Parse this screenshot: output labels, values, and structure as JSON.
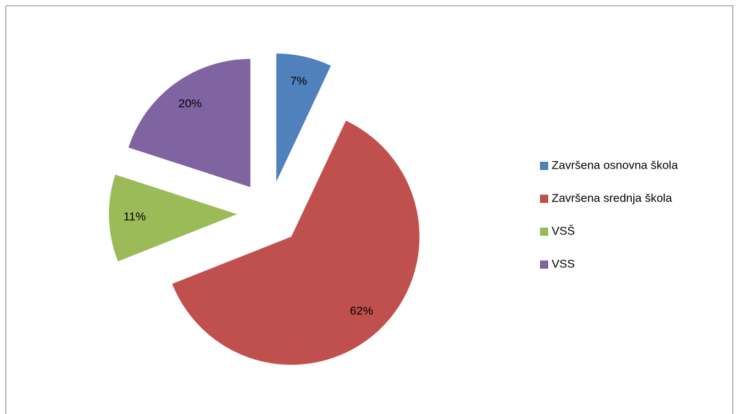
{
  "chart_data": {
    "type": "pie",
    "categories": [
      "Završena osnovna škola",
      "Završena srednja škola",
      "VSŠ",
      "VSS"
    ],
    "values": [
      7,
      62,
      11,
      20
    ],
    "value_labels": [
      "7%",
      "62%",
      "11%",
      "20%"
    ],
    "colors": [
      "#4f81bd",
      "#c0504d",
      "#9bbb59",
      "#8064a2"
    ],
    "legend": "right"
  }
}
